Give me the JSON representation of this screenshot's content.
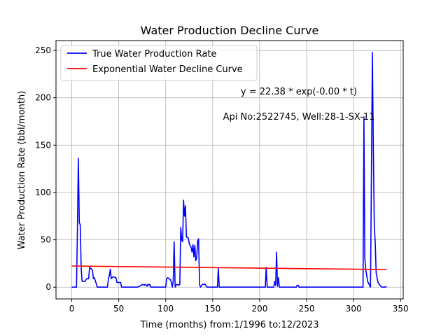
{
  "chart_data": {
    "type": "line",
    "title": "Water Production Decline Curve",
    "xlabel": "Time (months) from:1/1996 to:12/2023",
    "ylabel": "Water Production Rate (bbl/month)",
    "xlim": [
      -16.8,
      352.8
    ],
    "ylim": [
      -12.4,
      260.4
    ],
    "xticks": [
      0,
      50,
      100,
      150,
      200,
      250,
      300,
      350
    ],
    "yticks": [
      0,
      50,
      100,
      150,
      200,
      250
    ],
    "grid": true,
    "legend_position": "top-left",
    "annotations": [
      {
        "id": "equation",
        "text": "y = 22.38 * exp(-0.00 * t)"
      },
      {
        "id": "well",
        "text": "Api No:2522745, Well:28-1-SX-11"
      }
    ],
    "series": [
      {
        "name": "True Water Production Rate",
        "color": "#0000ff",
        "points": [
          [
            0,
            0
          ],
          [
            5,
            0
          ],
          [
            6,
            60
          ],
          [
            7,
            136
          ],
          [
            8,
            68
          ],
          [
            9,
            66
          ],
          [
            10,
            20
          ],
          [
            11,
            6
          ],
          [
            14,
            6
          ],
          [
            16,
            9
          ],
          [
            18,
            9
          ],
          [
            19,
            21
          ],
          [
            21,
            19
          ],
          [
            22,
            18
          ],
          [
            23,
            9
          ],
          [
            24,
            10
          ],
          [
            26,
            4
          ],
          [
            27,
            0
          ],
          [
            38,
            0
          ],
          [
            39,
            9
          ],
          [
            40,
            12
          ],
          [
            41,
            19
          ],
          [
            42,
            9
          ],
          [
            44,
            11
          ],
          [
            47,
            10
          ],
          [
            48,
            5
          ],
          [
            52,
            5
          ],
          [
            53,
            0
          ],
          [
            70,
            0
          ],
          [
            72,
            1
          ],
          [
            74,
            2
          ],
          [
            75,
            3
          ],
          [
            77,
            2
          ],
          [
            78,
            3
          ],
          [
            79,
            2
          ],
          [
            80,
            1
          ],
          [
            81,
            3
          ],
          [
            82,
            2
          ],
          [
            83,
            3
          ],
          [
            84,
            0
          ],
          [
            100,
            0
          ],
          [
            101,
            9
          ],
          [
            102,
            10
          ],
          [
            105,
            8
          ],
          [
            106,
            5
          ],
          [
            107,
            0
          ],
          [
            108,
            7
          ],
          [
            109,
            48
          ],
          [
            110,
            0
          ],
          [
            111,
            2
          ],
          [
            112,
            3
          ],
          [
            114,
            2
          ],
          [
            115,
            3
          ],
          [
            116,
            63
          ],
          [
            117,
            50
          ],
          [
            118,
            48
          ],
          [
            119,
            92
          ],
          [
            120,
            75
          ],
          [
            121,
            86
          ],
          [
            122,
            53
          ],
          [
            124,
            52
          ],
          [
            125,
            46
          ],
          [
            127,
            42
          ],
          [
            128,
            37
          ],
          [
            129,
            45
          ],
          [
            130,
            32
          ],
          [
            131,
            44
          ],
          [
            132,
            28
          ],
          [
            133,
            31
          ],
          [
            134,
            49
          ],
          [
            135,
            51
          ],
          [
            136,
            3
          ],
          [
            137,
            0
          ],
          [
            139,
            3
          ],
          [
            142,
            3
          ],
          [
            143,
            1
          ],
          [
            144,
            0
          ],
          [
            155,
            0
          ],
          [
            156,
            20
          ],
          [
            157,
            0
          ],
          [
            206,
            0
          ],
          [
            207,
            21
          ],
          [
            208,
            0
          ],
          [
            215,
            0
          ],
          [
            216,
            6
          ],
          [
            217,
            2
          ],
          [
            218,
            37
          ],
          [
            219,
            1
          ],
          [
            220,
            10
          ],
          [
            221,
            0
          ],
          [
            239,
            0
          ],
          [
            240,
            2
          ],
          [
            241,
            2
          ],
          [
            242,
            0
          ],
          [
            310,
            0
          ],
          [
            311,
            180
          ],
          [
            312,
            30
          ],
          [
            313,
            18
          ],
          [
            315,
            6
          ],
          [
            317,
            2
          ],
          [
            318,
            0
          ],
          [
            320,
            248
          ],
          [
            321,
            150
          ],
          [
            322,
            65
          ],
          [
            323,
            48
          ],
          [
            324,
            15
          ],
          [
            325,
            10
          ],
          [
            326,
            5
          ],
          [
            328,
            2
          ],
          [
            330,
            0
          ],
          [
            334,
            0
          ],
          [
            335,
            1
          ]
        ]
      },
      {
        "name": "Exponential Water Decline Curve",
        "color": "#ff0000",
        "x": [
          0,
          335
        ],
        "y": [
          22.38,
          18.6
        ]
      }
    ]
  }
}
